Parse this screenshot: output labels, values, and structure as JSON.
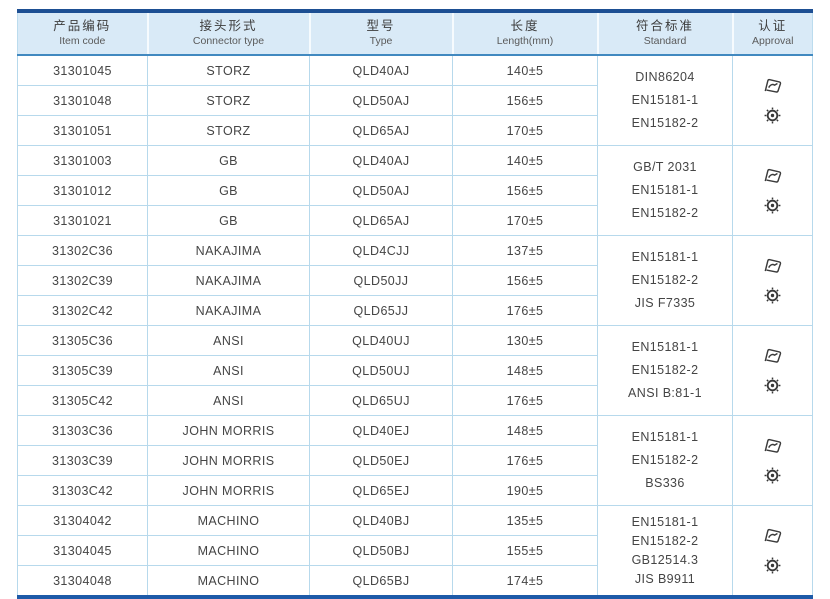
{
  "colors": {
    "header_bg": "#d9eaf7",
    "top_border": "#1d4f93",
    "bottom_border": "#1d5aa8",
    "grid_line": "#b7d9ec",
    "text": "#454545"
  },
  "icons": {
    "approval_top": "certification-stamp-icon",
    "approval_bottom": "wheelmark-gear-icon"
  },
  "table": {
    "headers": [
      {
        "zh": "产品编码",
        "en": "Item code"
      },
      {
        "zh": "接头形式",
        "en": "Connector type"
      },
      {
        "zh": "型号",
        "en": "Type"
      },
      {
        "zh": "长度",
        "en": "Length(mm)"
      },
      {
        "zh": "符合标准",
        "en": "Standard"
      },
      {
        "zh": "认证",
        "en": "Approval"
      }
    ],
    "groups": [
      {
        "rows": [
          {
            "item_code": "31301045",
            "connector": "STORZ",
            "type": "QLD40AJ",
            "length": "140±5"
          },
          {
            "item_code": "31301048",
            "connector": "STORZ",
            "type": "QLD50AJ",
            "length": "156±5"
          },
          {
            "item_code": "31301051",
            "connector": "STORZ",
            "type": "QLD65AJ",
            "length": "170±5"
          }
        ],
        "standards": [
          "DIN86204",
          "EN15181-1",
          "EN15182-2"
        ]
      },
      {
        "rows": [
          {
            "item_code": "31301003",
            "connector": "GB",
            "type": "QLD40AJ",
            "length": "140±5"
          },
          {
            "item_code": "31301012",
            "connector": "GB",
            "type": "QLD50AJ",
            "length": "156±5"
          },
          {
            "item_code": "31301021",
            "connector": "GB",
            "type": "QLD65AJ",
            "length": "170±5"
          }
        ],
        "standards": [
          "GB/T 2031",
          "EN15181-1",
          "EN15182-2"
        ]
      },
      {
        "rows": [
          {
            "item_code": "31302C36",
            "connector": "NAKAJIMA",
            "type": "QLD4CJJ",
            "length": "137±5"
          },
          {
            "item_code": "31302C39",
            "connector": "NAKAJIMA",
            "type": "QLD50JJ",
            "length": "156±5"
          },
          {
            "item_code": "31302C42",
            "connector": "NAKAJIMA",
            "type": "QLD65JJ",
            "length": "176±5"
          }
        ],
        "standards": [
          "EN15181-1",
          "EN15182-2",
          "JIS F7335"
        ]
      },
      {
        "rows": [
          {
            "item_code": "31305C36",
            "connector": "ANSI",
            "type": "QLD40UJ",
            "length": "130±5"
          },
          {
            "item_code": "31305C39",
            "connector": "ANSI",
            "type": "QLD50UJ",
            "length": "148±5"
          },
          {
            "item_code": "31305C42",
            "connector": "ANSI",
            "type": "QLD65UJ",
            "length": "176±5"
          }
        ],
        "standards": [
          "EN15181-1",
          "EN15182-2",
          "ANSI B:81-1"
        ]
      },
      {
        "rows": [
          {
            "item_code": "31303C36",
            "connector": "JOHN MORRIS",
            "type": "QLD40EJ",
            "length": "148±5"
          },
          {
            "item_code": "31303C39",
            "connector": "JOHN MORRIS",
            "type": "QLD50EJ",
            "length": "176±5"
          },
          {
            "item_code": "31303C42",
            "connector": "JOHN MORRIS",
            "type": "QLD65EJ",
            "length": "190±5"
          }
        ],
        "standards": [
          "EN15181-1",
          "EN15182-2",
          "BS336"
        ]
      },
      {
        "rows": [
          {
            "item_code": "31304042",
            "connector": "MACHINO",
            "type": "QLD40BJ",
            "length": "135±5"
          },
          {
            "item_code": "31304045",
            "connector": "MACHINO",
            "type": "QLD50BJ",
            "length": "155±5"
          },
          {
            "item_code": "31304048",
            "connector": "MACHINO",
            "type": "QLD65BJ",
            "length": "174±5"
          }
        ],
        "standards": [
          "EN15181-1",
          "EN15182-2",
          "GB12514.3",
          "JIS B9911"
        ]
      }
    ]
  }
}
